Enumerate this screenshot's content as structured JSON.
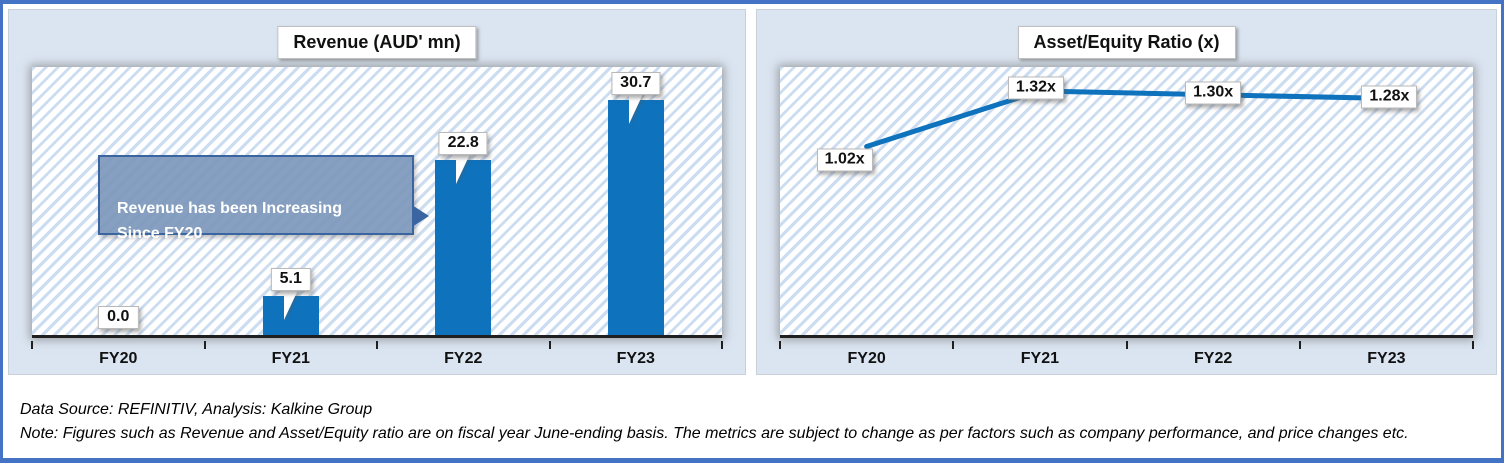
{
  "frame": {
    "border_color": "#4472c4",
    "panel_background": "#dbe5f1",
    "hatch_stripe_color": "#cdddf1",
    "accent_blue": "#0f72bc"
  },
  "footer": {
    "source_line": "Data Source: REFINITIV, Analysis: Kalkine Group",
    "note_line": "Note: Figures such as Revenue and Asset/Equity ratio are on fiscal year June-ending basis. The metrics are subject to change as per factors such as company performance, and price changes etc."
  },
  "chart_data": [
    {
      "type": "bar",
      "title": "Revenue (AUD' mn)",
      "categories": [
        "FY20",
        "FY21",
        "FY22",
        "FY23"
      ],
      "values": [
        0.0,
        5.1,
        22.8,
        30.7
      ],
      "labels": [
        "0.0",
        "5.1",
        "22.8",
        "30.7"
      ],
      "ylim": [
        0,
        35
      ],
      "grid": false,
      "bar_color": "#0f72bc",
      "annotation": "Revenue has been Increasing\nSince FY20"
    },
    {
      "type": "line",
      "title": "Asset/Equity Ratio (x)",
      "categories": [
        "FY20",
        "FY21",
        "FY22",
        "FY23"
      ],
      "values": [
        1.02,
        1.32,
        1.3,
        1.28
      ],
      "labels": [
        "1.02x",
        "1.32x",
        "1.30x",
        "1.28x"
      ],
      "ylim": [
        0,
        1.45
      ],
      "grid": false,
      "line_color": "#0f72bc"
    }
  ]
}
